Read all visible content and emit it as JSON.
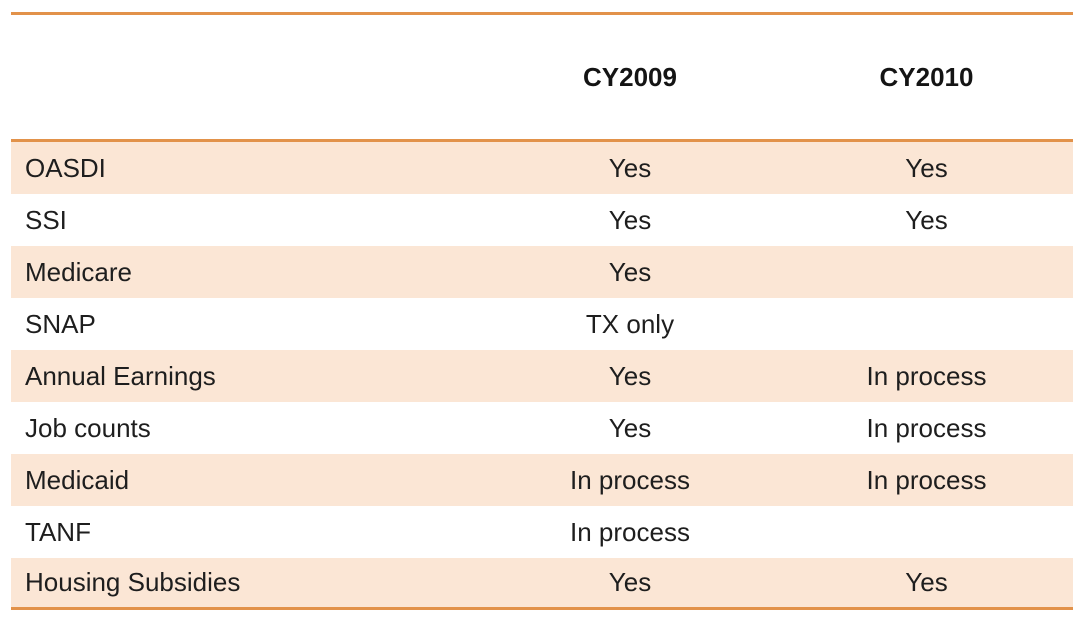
{
  "table": {
    "columns": [
      "",
      "CY2009",
      "CY2010"
    ],
    "rows": [
      {
        "label": "OASDI",
        "cy2009": "Yes",
        "cy2010": "Yes"
      },
      {
        "label": "SSI",
        "cy2009": "Yes",
        "cy2010": "Yes"
      },
      {
        "label": "Medicare",
        "cy2009": "Yes",
        "cy2010": ""
      },
      {
        "label": "SNAP",
        "cy2009": "TX only",
        "cy2010": ""
      },
      {
        "label": "Annual Earnings",
        "cy2009": "Yes",
        "cy2010": "In process"
      },
      {
        "label": "Job counts",
        "cy2009": "Yes",
        "cy2010": "In process"
      },
      {
        "label": "Medicaid",
        "cy2009": "In process",
        "cy2010": "In process"
      },
      {
        "label": "TANF",
        "cy2009": "In process",
        "cy2010": ""
      },
      {
        "label": "Housing Subsidies",
        "cy2009": "Yes",
        "cy2010": "Yes"
      }
    ]
  },
  "colors": {
    "band_fill": "#FBE6D5",
    "rule_orange": "#E2924A",
    "text": "#1E1E1E",
    "background": "#FFFFFF"
  },
  "chart_data": {
    "type": "table",
    "title": "",
    "columns": [
      "",
      "CY2009",
      "CY2010"
    ],
    "rows": [
      [
        "OASDI",
        "Yes",
        "Yes"
      ],
      [
        "SSI",
        "Yes",
        "Yes"
      ],
      [
        "Medicare",
        "Yes",
        ""
      ],
      [
        "SNAP",
        "TX only",
        ""
      ],
      [
        "Annual Earnings",
        "Yes",
        "In process"
      ],
      [
        "Job counts",
        "Yes",
        "In process"
      ],
      [
        "Medicaid",
        "In process",
        "In process"
      ],
      [
        "TANF",
        "In process",
        ""
      ],
      [
        "Housing Subsidies",
        "Yes",
        "Yes"
      ]
    ],
    "layout_hints": {
      "banded_rows": true,
      "band_color": "#FBE6D5",
      "rule_color": "#E2924A",
      "value_alignment": "center",
      "label_alignment": "left"
    }
  }
}
